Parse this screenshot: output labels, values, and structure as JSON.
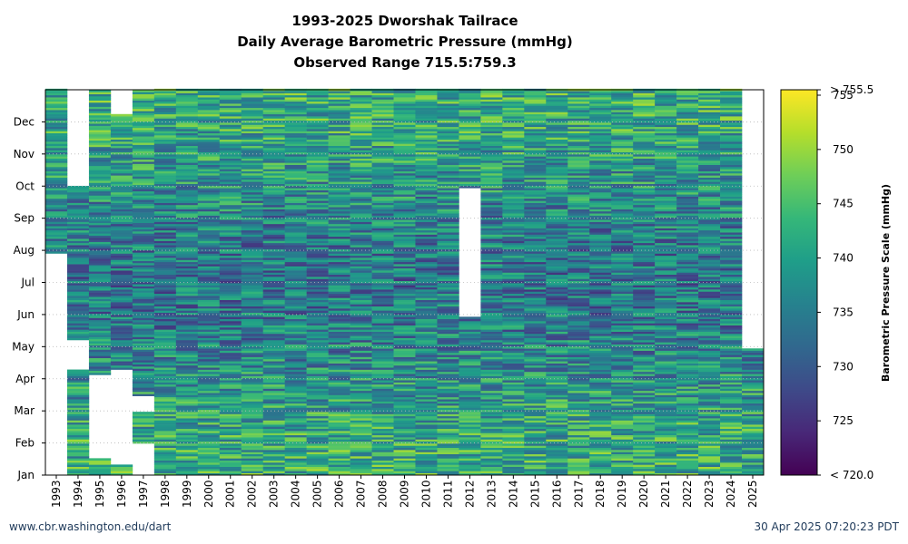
{
  "chart_data": {
    "type": "heatmap",
    "title": "1993-2025 Dworshak Tailrace",
    "subtitle": "Daily Average Barometric Pressure (mmHg)",
    "observed_range": "Observed Range 715.5:759.3",
    "x": [
      "1993",
      "1994",
      "1995",
      "1996",
      "1997",
      "1998",
      "1999",
      "2000",
      "2001",
      "2002",
      "2003",
      "2004",
      "2005",
      "2006",
      "2007",
      "2008",
      "2009",
      "2010",
      "2011",
      "2012",
      "2013",
      "2014",
      "2015",
      "2016",
      "2017",
      "2018",
      "2019",
      "2020",
      "2021",
      "2022",
      "2023",
      "2024",
      "2025"
    ],
    "y_ticks": [
      "Jan",
      "Feb",
      "Mar",
      "Apr",
      "May",
      "Jun",
      "Jul",
      "Aug",
      "Sep",
      "Oct",
      "Nov",
      "Dec"
    ],
    "colorbar": {
      "label": "Barometric Pressure Scale (mmHg)",
      "min": 720.0,
      "max": 755.5,
      "min_label": "< 720.0",
      "max_label": "> 755.5",
      "ticks": [
        725,
        730,
        735,
        740,
        745,
        750,
        755
      ],
      "colors": [
        "#440154",
        "#482878",
        "#3e4a89",
        "#31688e",
        "#26828e",
        "#1f9e89",
        "#35b779",
        "#6ece58",
        "#b5de2b",
        "#fde725"
      ]
    },
    "coverage_days": [
      {
        "year": "1993",
        "ranges": [
          [
            210,
            365
          ]
        ]
      },
      {
        "year": "1994",
        "ranges": [
          [
            0,
            100
          ],
          [
            128,
            273
          ]
        ]
      },
      {
        "year": "1995",
        "ranges": [
          [
            0,
            15
          ],
          [
            95,
            365
          ]
        ]
      },
      {
        "year": "1996",
        "ranges": [
          [
            0,
            10
          ],
          [
            100,
            342
          ]
        ]
      },
      {
        "year": "1997",
        "ranges": [
          [
            30,
            60
          ],
          [
            75,
            365
          ]
        ]
      },
      {
        "year": "2012",
        "ranges": [
          [
            0,
            150
          ],
          [
            272,
            365
          ]
        ]
      },
      {
        "year": "2025",
        "ranges": [
          [
            0,
            120
          ]
        ]
      }
    ],
    "typical_mean": 738,
    "grid": true
  },
  "footer": {
    "source": "www.cbr.washington.edu/dart",
    "timestamp": "30 Apr 2025 07:20:23 PDT"
  }
}
